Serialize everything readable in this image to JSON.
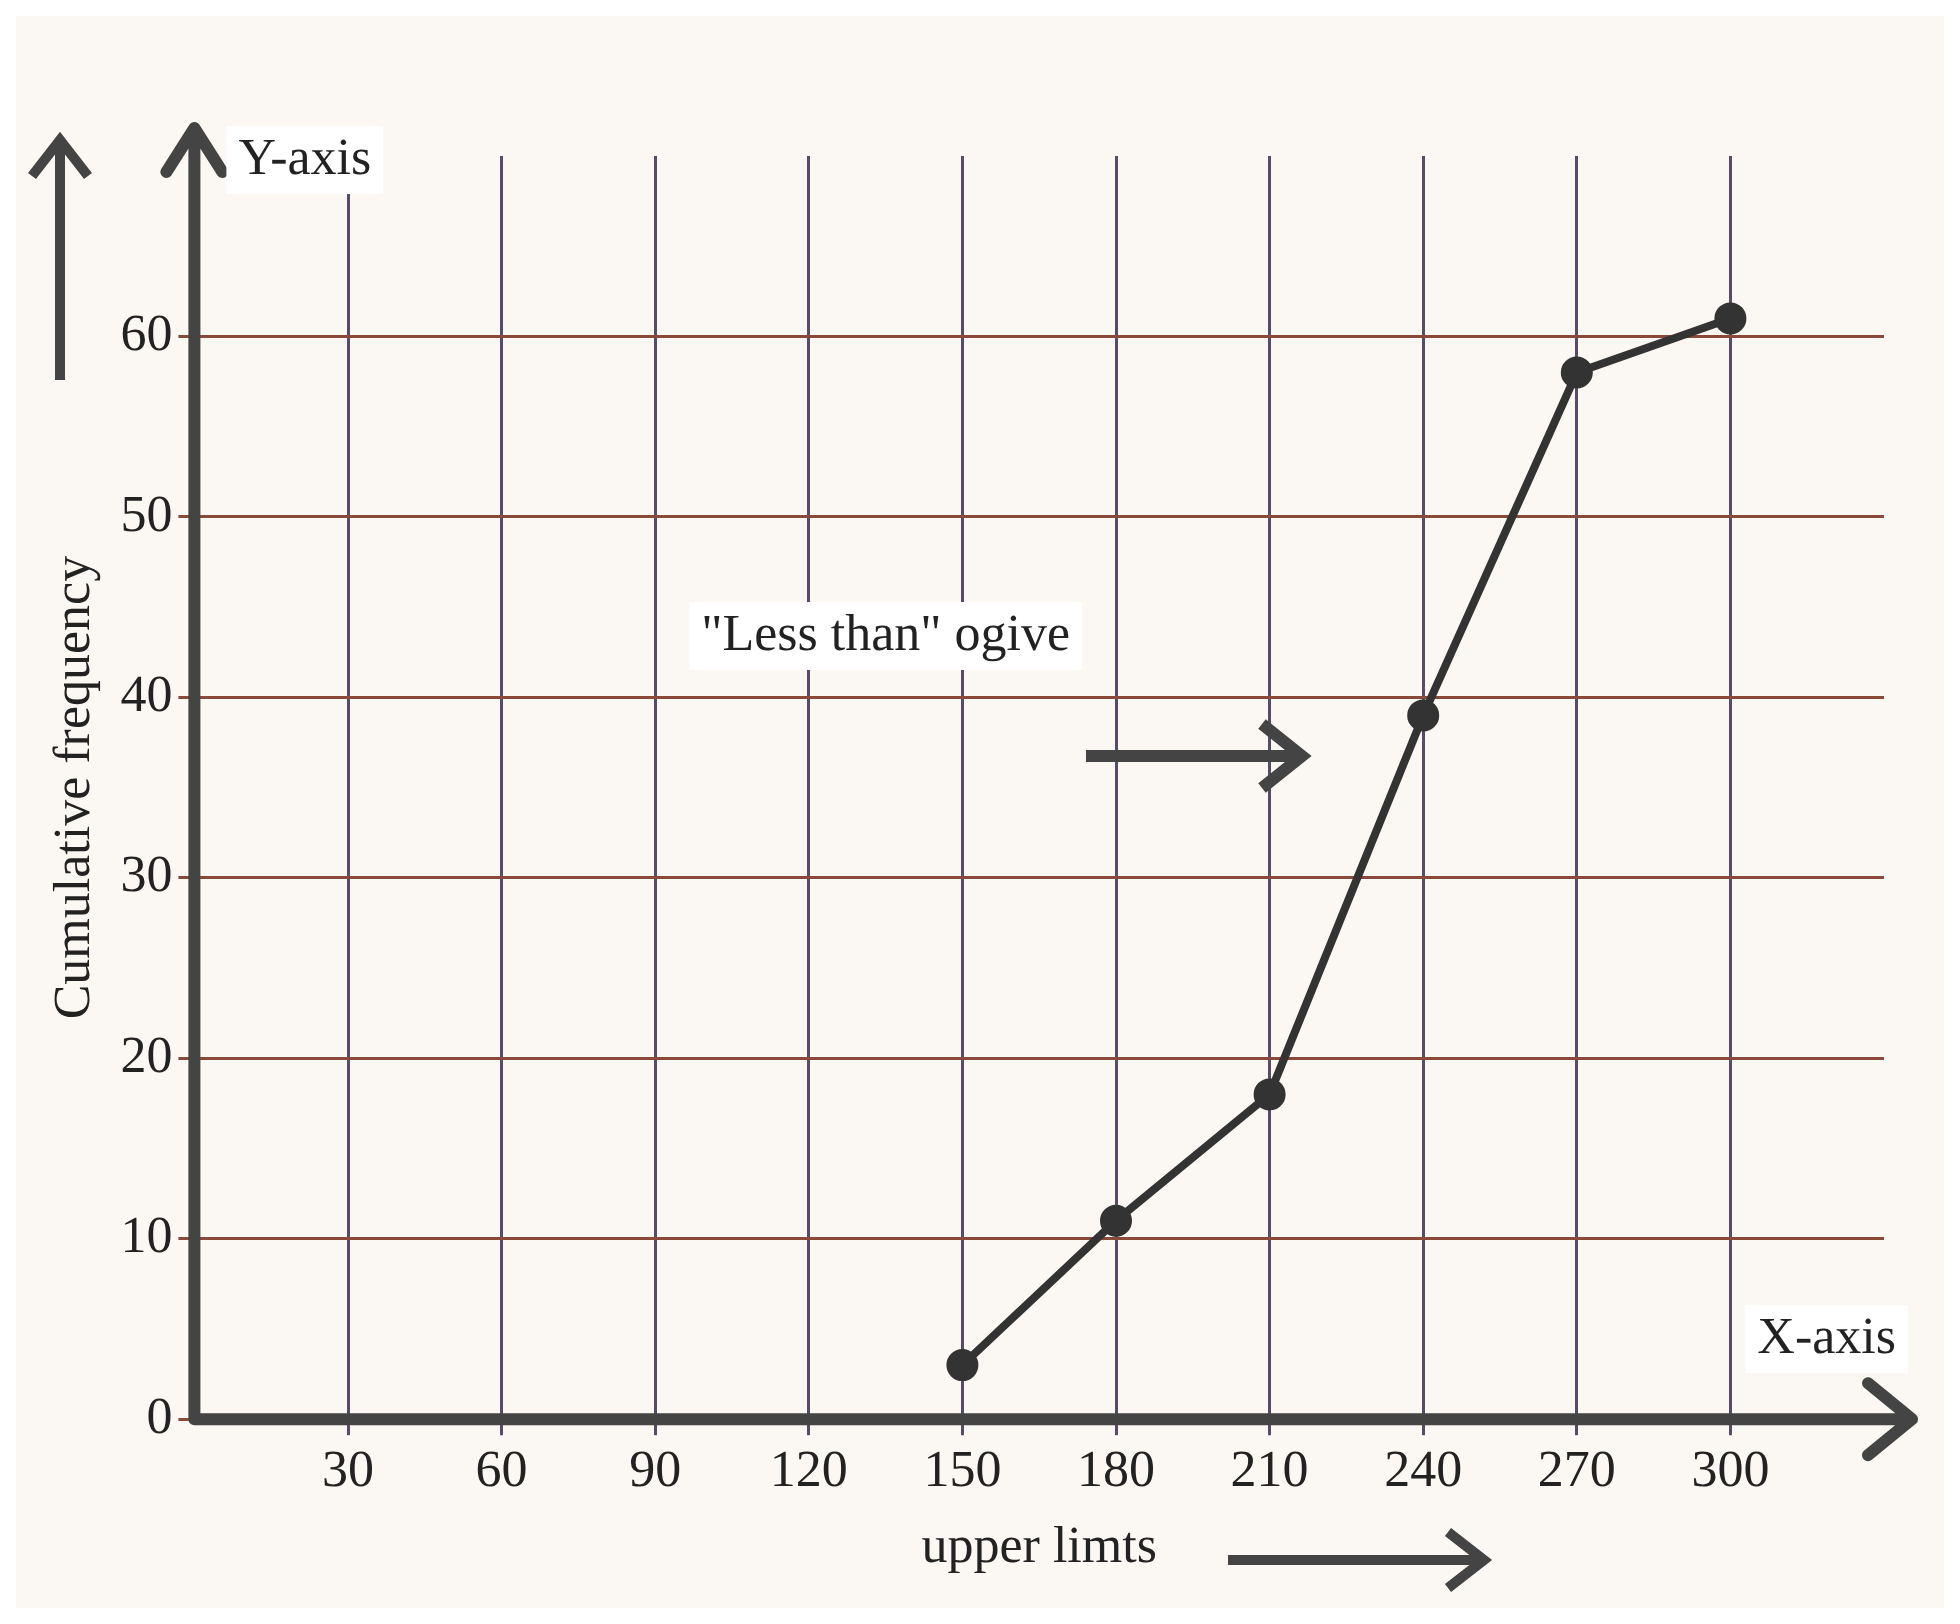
{
  "chart_data": {
    "type": "line",
    "xlabel": "upper limts",
    "ylabel": "Cumulative frequency",
    "x": [
      150,
      180,
      210,
      240,
      270,
      300
    ],
    "series": [
      {
        "color": "#333333",
        "values": [
          3,
          11,
          18,
          39,
          58,
          61
        ]
      }
    ],
    "xlim": [
      0,
      330
    ],
    "ylim": [
      0,
      70
    ],
    "xticks": [
      30,
      60,
      90,
      120,
      150,
      180,
      210,
      240,
      270,
      300
    ],
    "yticks": [
      0,
      10,
      20,
      30,
      40,
      50,
      60
    ],
    "grid": true,
    "legend": false,
    "marker": "circle",
    "line_style": "solid",
    "annotations": [
      "Y-axis",
      "X-axis",
      "\"Less than\" ogive"
    ]
  }
}
